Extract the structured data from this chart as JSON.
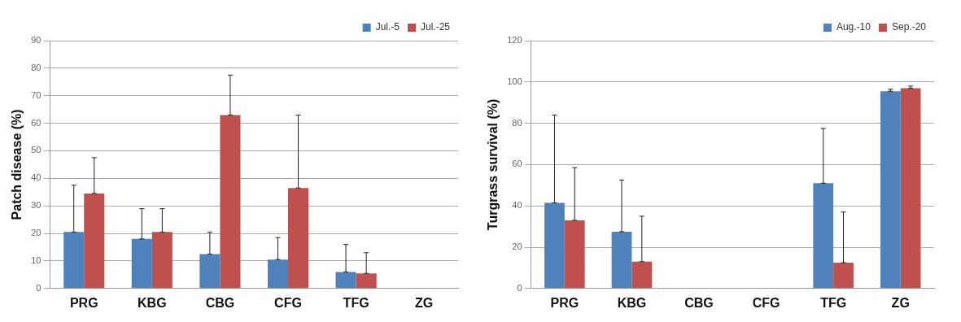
{
  "chart_data": [
    {
      "type": "bar",
      "ylabel": "Patch disease (%)",
      "categories": [
        "PRG",
        "KBG",
        "CBG",
        "CFG",
        "TFG",
        "ZG"
      ],
      "ylim": [
        0,
        90
      ],
      "yticks": [
        0,
        10,
        20,
        30,
        40,
        50,
        60,
        70,
        80,
        90
      ],
      "grid": "y",
      "legend": "top right",
      "series": [
        {
          "name": "Jul.-5",
          "color": "#4f81bd",
          "values": [
            20.5,
            18,
            12.5,
            10.5,
            6,
            0
          ],
          "errors": [
            [
              20.5,
              37.5
            ],
            [
              18,
              29
            ],
            [
              12.5,
              20.5
            ],
            [
              10.5,
              18.5
            ],
            [
              6,
              16
            ],
            null
          ]
        },
        {
          "name": "Jul.-25",
          "color": "#c0504d",
          "values": [
            34.5,
            20.5,
            63,
            36.5,
            5.5,
            0
          ],
          "errors": [
            [
              34.5,
              47.5
            ],
            [
              20.5,
              29
            ],
            [
              63,
              77.5
            ],
            [
              36.5,
              63
            ],
            [
              5.5,
              13
            ],
            null
          ]
        }
      ]
    },
    {
      "type": "bar",
      "ylabel": "Turgrass survival (%)",
      "categories": [
        "PRG",
        "KBG",
        "CBG",
        "CFG",
        "TFG",
        "ZG"
      ],
      "ylim": [
        0,
        120
      ],
      "yticks": [
        0,
        20,
        40,
        60,
        80,
        100,
        120
      ],
      "grid": "y",
      "legend": "top right",
      "series": [
        {
          "name": "Aug.-10",
          "color": "#4f81bd",
          "values": [
            41.5,
            27.5,
            0,
            0,
            51,
            95.5
          ],
          "errors": [
            [
              41.5,
              84
            ],
            [
              27.5,
              52.5
            ],
            null,
            null,
            [
              51,
              77.5
            ],
            [
              95.5,
              96.5
            ]
          ]
        },
        {
          "name": "Sep.-20",
          "color": "#c0504d",
          "values": [
            33,
            13,
            0,
            0,
            12.5,
            97
          ],
          "errors": [
            [
              33,
              58.5
            ],
            [
              13,
              35
            ],
            null,
            null,
            [
              12.5,
              37
            ],
            [
              97,
              98
            ]
          ]
        }
      ]
    }
  ]
}
